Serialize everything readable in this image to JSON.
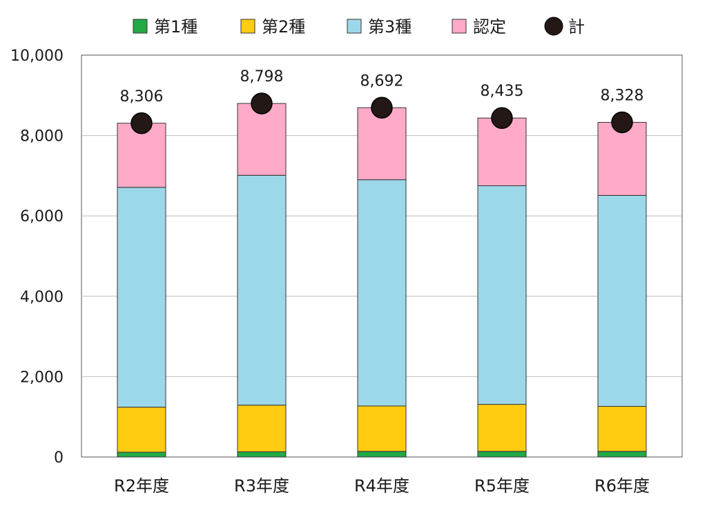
{
  "chart_data": {
    "type": "bar",
    "stacked": true,
    "categories": [
      "R2年度",
      "R3年度",
      "R4年度",
      "R5年度",
      "R6年度"
    ],
    "series": [
      {
        "name": "第1種",
        "color": "#22aa44",
        "values": [
          120,
          130,
          140,
          140,
          140
        ]
      },
      {
        "name": "第2種",
        "color": "#ffcc11",
        "values": [
          1120,
          1160,
          1130,
          1170,
          1120
        ]
      },
      {
        "name": "第3種",
        "color": "#9dd8ea",
        "values": [
          5470,
          5720,
          5630,
          5440,
          5250
        ]
      },
      {
        "name": "認定",
        "color": "#ffaac8",
        "values": [
          1596,
          1788,
          1792,
          1685,
          1818
        ]
      }
    ],
    "totals": {
      "name": "計",
      "color": "#231815",
      "values": [
        8306,
        8798,
        8692,
        8435,
        8328
      ],
      "labels": [
        "8,306",
        "8,798",
        "8,692",
        "8,435",
        "8,328"
      ]
    },
    "ylim": [
      0,
      10000
    ],
    "yticks": [
      0,
      2000,
      4000,
      6000,
      8000,
      10000
    ],
    "ytick_labels": [
      "0",
      "2,000",
      "4,000",
      "6,000",
      "8,000",
      "10,000"
    ],
    "grid": true,
    "legend": "top",
    "title": "",
    "xlabel": "",
    "ylabel": ""
  }
}
